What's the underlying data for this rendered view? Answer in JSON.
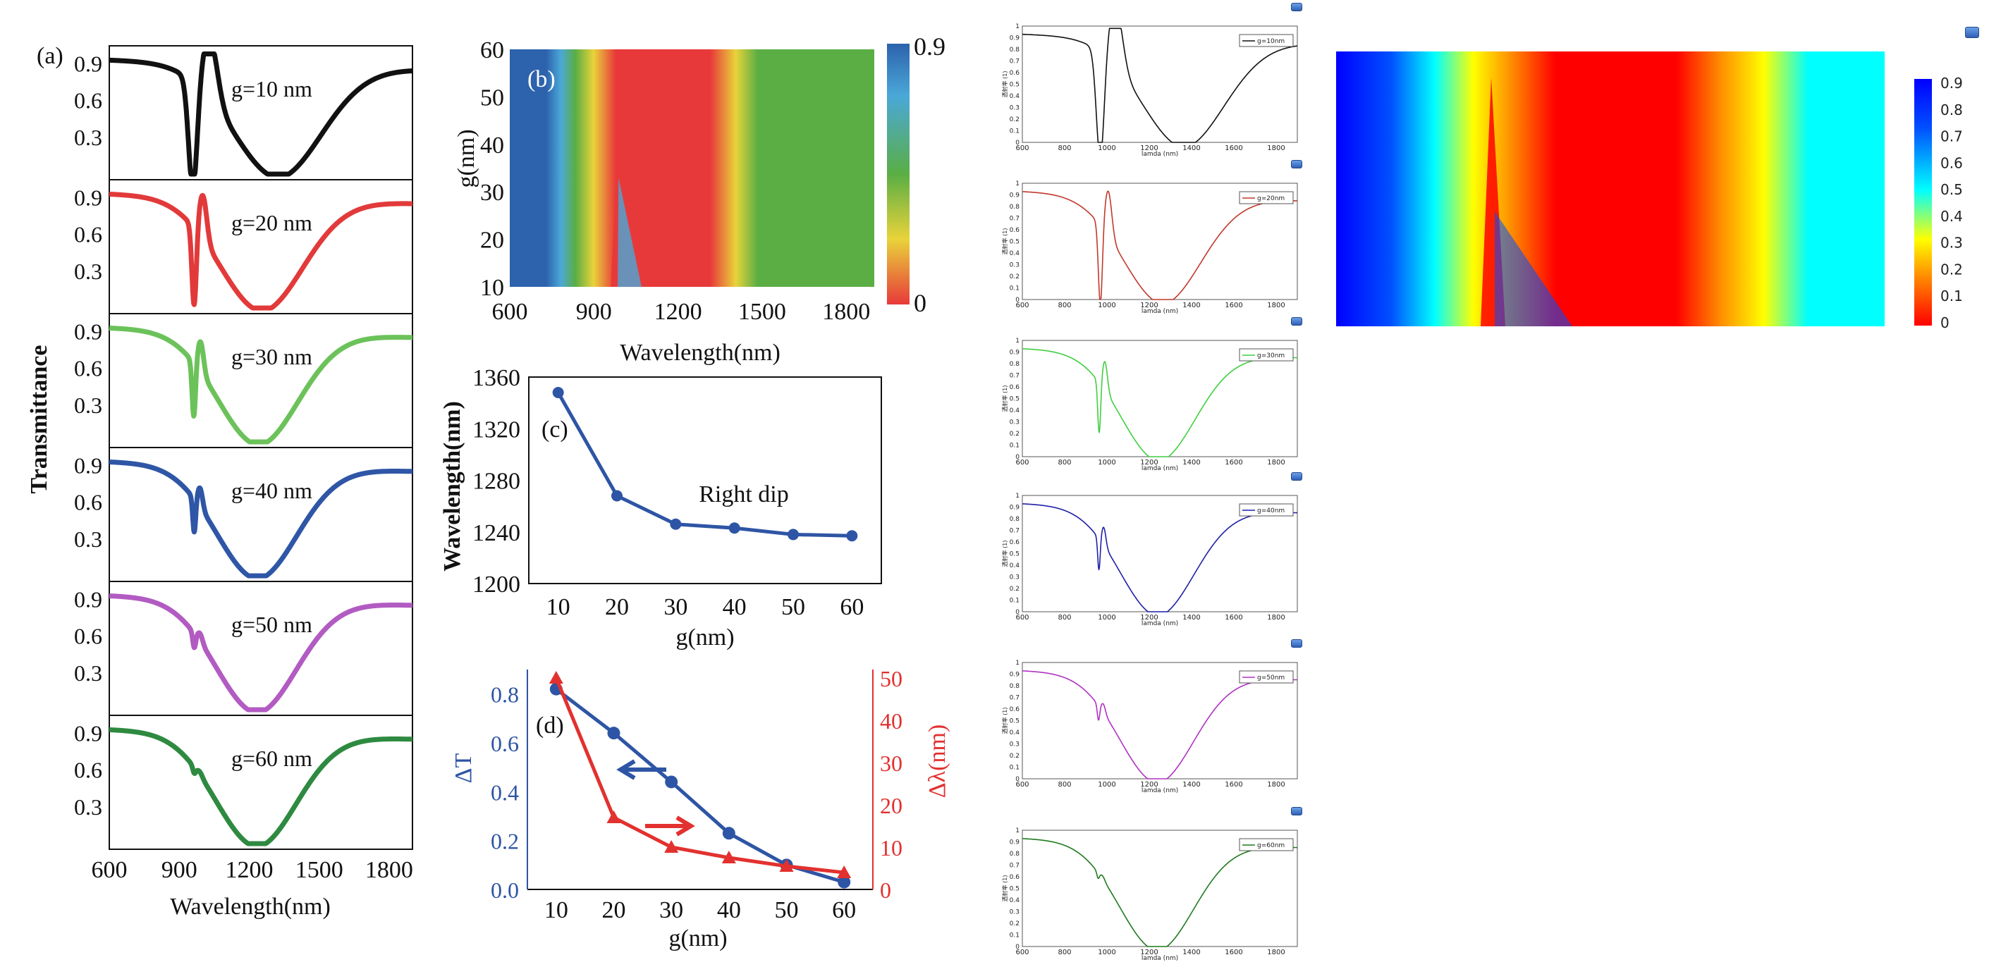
{
  "chart_data": [
    {
      "id": "a",
      "type": "line",
      "panel_label": "(a)",
      "ylabel": "Transmittance",
      "xlabel": "Wavelength(nm)",
      "xticks": [
        "600",
        "900",
        "1200",
        "1500",
        "1800"
      ],
      "yticks": [
        "0.3",
        "0.6",
        "0.9"
      ],
      "xlim": [
        600,
        1900
      ],
      "ylim": [
        0,
        1.0
      ],
      "series": [
        {
          "name": "g=10 nm",
          "color": "#111111",
          "params": {
            "fano_center": 990,
            "fano_amp": 0.9,
            "fano_width": 35,
            "dip_center": 1330,
            "dip_width": 330,
            "dip_depth": 0.92
          }
        },
        {
          "name": "g=20 nm",
          "color": "#e23a3a",
          "params": {
            "fano_center": 980,
            "fano_amp": 0.65,
            "fano_width": 18,
            "dip_center": 1260,
            "dip_width": 310,
            "dip_depth": 0.92
          }
        },
        {
          "name": "g=30 nm",
          "color": "#6cc25a",
          "params": {
            "fano_center": 975,
            "fano_amp": 0.45,
            "fano_width": 14,
            "dip_center": 1245,
            "dip_width": 300,
            "dip_depth": 0.92
          }
        },
        {
          "name": "g=40 nm",
          "color": "#2f56a6",
          "params": {
            "fano_center": 975,
            "fano_amp": 0.28,
            "fano_width": 12,
            "dip_center": 1240,
            "dip_width": 300,
            "dip_depth": 0.92
          }
        },
        {
          "name": "g=50 nm",
          "color": "#b25bc2",
          "params": {
            "fano_center": 975,
            "fano_amp": 0.12,
            "fano_width": 12,
            "dip_center": 1238,
            "dip_width": 300,
            "dip_depth": 0.92
          }
        },
        {
          "name": "g=60 nm",
          "color": "#2e8a40",
          "params": {
            "fano_center": 975,
            "fano_amp": 0.05,
            "fano_width": 12,
            "dip_center": 1238,
            "dip_width": 300,
            "dip_depth": 0.92
          }
        }
      ]
    },
    {
      "id": "b",
      "type": "heatmap",
      "panel_label": "(b)",
      "xlabel": "Wavelength(nm)",
      "ylabel": "g(nm)",
      "xticks": [
        "600",
        "900",
        "1200",
        "1500",
        "1800"
      ],
      "yticks": [
        "10",
        "20",
        "30",
        "40",
        "50",
        "60"
      ],
      "xlim": [
        600,
        1900
      ],
      "ylim": [
        10,
        60
      ],
      "colorbar": {
        "max_label": "0.9",
        "min_label": "0",
        "range": [
          0,
          0.9
        ]
      },
      "colors": [
        "#e8393a",
        "#e9d33a",
        "#5aae44",
        "#4aa8d8",
        "#2d62ad"
      ]
    },
    {
      "id": "c",
      "type": "line",
      "panel_label": "(c)",
      "xlabel": "g(nm)",
      "ylabel": "Wavelength(nm)",
      "annotation": "Right dip",
      "x": [
        10,
        20,
        30,
        40,
        50,
        60
      ],
      "xticks": [
        "10",
        "20",
        "30",
        "40",
        "50",
        "60"
      ],
      "yticks": [
        "1200",
        "1240",
        "1280",
        "1320",
        "1360"
      ],
      "xlim": [
        5,
        65
      ],
      "ylim": [
        1200,
        1360
      ],
      "series": [
        {
          "values": [
            1348,
            1268,
            1246,
            1243,
            1238,
            1237
          ],
          "color": "#2e55a5"
        }
      ]
    },
    {
      "id": "d",
      "type": "line",
      "panel_label": "(d)",
      "xlabel": "g(nm)",
      "ylabel_left": "ΔT",
      "ylabel_right": "Δλ(nm)",
      "x": [
        10,
        20,
        30,
        40,
        50,
        60
      ],
      "xticks": [
        "10",
        "20",
        "30",
        "40",
        "50",
        "60"
      ],
      "yticks_left": [
        "0.0",
        "0.2",
        "0.4",
        "0.6",
        "0.8"
      ],
      "yticks_right": [
        "0",
        "10",
        "20",
        "30",
        "40",
        "50"
      ],
      "xlim": [
        5,
        65
      ],
      "ylim_left": [
        0,
        0.9
      ],
      "ylim_right": [
        0,
        52
      ],
      "series": [
        {
          "axis": "left",
          "values": [
            0.82,
            0.64,
            0.44,
            0.23,
            0.1,
            0.03
          ],
          "color": "#2e55a5"
        },
        {
          "axis": "right",
          "values": [
            50,
            17,
            10,
            7.5,
            5.5,
            4
          ],
          "color": "#e2312f"
        }
      ]
    },
    {
      "id": "sim",
      "type": "line",
      "ylabel": "透射率 (1)",
      "xlabel": "lamda (nm)",
      "xticks": [
        "600",
        "800",
        "1000",
        "1200",
        "1400",
        "1600",
        "1800"
      ],
      "yticks": [
        "0",
        "0.1",
        "0.2",
        "0.3",
        "0.4",
        "0.5",
        "0.6",
        "0.7",
        "0.8",
        "0.9",
        "1"
      ],
      "xlim": [
        600,
        1900
      ],
      "ylim": [
        0,
        1
      ],
      "series": [
        {
          "name": "g=10nm",
          "color": "#111111",
          "params": {
            "fano_center": 1000,
            "fano_amp": 0.95,
            "fano_width": 35,
            "dip_center": 1370,
            "dip_width": 340,
            "dip_depth": 0.93
          }
        },
        {
          "name": "g=20nm",
          "color": "#c0392b",
          "params": {
            "fano_center": 985,
            "fano_amp": 0.7,
            "fano_width": 18,
            "dip_center": 1270,
            "dip_width": 320,
            "dip_depth": 0.93
          }
        },
        {
          "name": "g=30nm",
          "color": "#3fcf3f",
          "params": {
            "fano_center": 975,
            "fano_amp": 0.45,
            "fano_width": 13,
            "dip_center": 1250,
            "dip_width": 305,
            "dip_depth": 0.93
          }
        },
        {
          "name": "g=40nm",
          "color": "#1f1fa8",
          "params": {
            "fano_center": 972,
            "fano_amp": 0.28,
            "fano_width": 11,
            "dip_center": 1245,
            "dip_width": 305,
            "dip_depth": 0.93
          }
        },
        {
          "name": "g=50nm",
          "color": "#b031c4",
          "params": {
            "fano_center": 970,
            "fano_amp": 0.13,
            "fano_width": 11,
            "dip_center": 1243,
            "dip_width": 305,
            "dip_depth": 0.93
          }
        },
        {
          "name": "g=60nm",
          "color": "#1f7a1f",
          "params": {
            "fano_center": 968,
            "fano_amp": 0.05,
            "fano_width": 11,
            "dip_center": 1243,
            "dip_width": 305,
            "dip_depth": 0.93
          }
        }
      ]
    },
    {
      "id": "sim-map",
      "type": "heatmap",
      "colorbar": {
        "ticks": [
          "0.9",
          "0.8",
          "0.7",
          "0.6",
          "0.5",
          "0.4",
          "0.3",
          "0.2",
          "0.1",
          "0"
        ],
        "range": [
          0,
          0.9
        ]
      },
      "colors": [
        "#ff0000",
        "#ff8c00",
        "#ffff00",
        "#00ffff",
        "#0050ff",
        "#0000ff"
      ]
    }
  ]
}
